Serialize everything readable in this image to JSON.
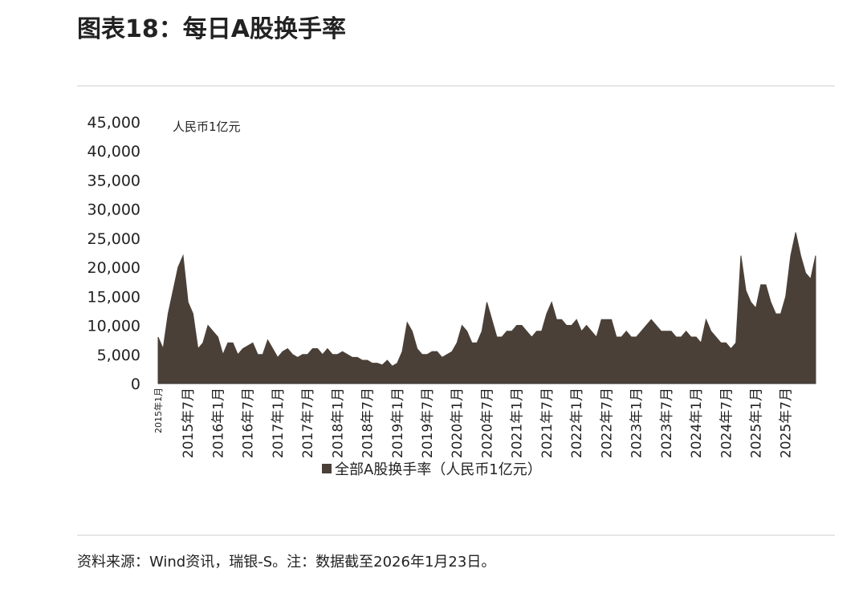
{
  "chart_data": {
    "type": "area",
    "title": "图表18：每日A股换手率",
    "unit_label": "人民币1亿元",
    "source": "资料来源：Wind资讯，瑞银-S。注：数据截至2026年1月23日。",
    "categories": [
      "2015年1月",
      null,
      null,
      null,
      null,
      null,
      "2015年7月",
      null,
      null,
      null,
      null,
      null,
      "2016年1月",
      null,
      null,
      null,
      null,
      null,
      "2016年7月",
      null,
      null,
      null,
      null,
      null,
      "2017年1月",
      null,
      null,
      null,
      null,
      null,
      "2017年7月",
      null,
      null,
      null,
      null,
      null,
      "2018年1月",
      null,
      null,
      null,
      null,
      null,
      "2018年7月",
      null,
      null,
      null,
      null,
      null,
      "2019年1月",
      null,
      null,
      null,
      null,
      null,
      "2019年7月",
      null,
      null,
      null,
      null,
      null,
      "2020年1月",
      null,
      null,
      null,
      null,
      null,
      "2020年7月",
      null,
      null,
      null,
      null,
      null,
      "2021年1月",
      null,
      null,
      null,
      null,
      null,
      "2021年7月",
      null,
      null,
      null,
      null,
      null,
      "2022年1月",
      null,
      null,
      null,
      null,
      null,
      "2022年7月",
      null,
      null,
      null,
      null,
      null,
      "2023年1月",
      null,
      null,
      null,
      null,
      null,
      "2023年7月",
      null,
      null,
      null,
      null,
      null,
      "2024年1月",
      null,
      null,
      null,
      null,
      null,
      "2024年7月",
      null,
      null,
      null,
      null,
      null,
      "2025年1月",
      null,
      null,
      null,
      null,
      null,
      "2025年7月",
      null,
      null,
      null,
      null,
      null,
      null
    ],
    "series": [
      {
        "name": "全部A股换手率（人民币1亿元）",
        "color": "#4a4038",
        "values": [
          8000,
          6000,
          12000,
          16000,
          20000,
          22000,
          14000,
          12000,
          6000,
          7000,
          10000,
          9000,
          8000,
          5000,
          7000,
          7000,
          5000,
          6000,
          6500,
          7000,
          5000,
          5000,
          7500,
          6000,
          4500,
          5500,
          6000,
          5000,
          4500,
          5000,
          5000,
          6000,
          6000,
          5000,
          6000,
          5000,
          5000,
          5500,
          5000,
          4500,
          4500,
          4000,
          4000,
          3500,
          3500,
          3200,
          4000,
          3000,
          3500,
          5500,
          10500,
          9000,
          6000,
          5000,
          5000,
          5500,
          5500,
          4500,
          5000,
          5500,
          7000,
          10000,
          9000,
          7000,
          7000,
          9000,
          14000,
          11000,
          8000,
          8000,
          9000,
          9000,
          10000,
          10000,
          9000,
          8000,
          9000,
          9000,
          12000,
          14000,
          11000,
          11000,
          10000,
          10000,
          11000,
          9000,
          10000,
          9000,
          8000,
          11000,
          11000,
          11000,
          8000,
          8000,
          9000,
          8000,
          8000,
          9000,
          10000,
          11000,
          10000,
          9000,
          9000,
          9000,
          8000,
          8000,
          9000,
          8000,
          8000,
          7000,
          11000,
          9000,
          8000,
          7000,
          7000,
          6000,
          7000,
          22000,
          16000,
          14000,
          13000,
          17000,
          17000,
          14000,
          12000,
          12000,
          15000,
          22000,
          26000,
          22000,
          19000,
          18000,
          22000
        ]
      }
    ],
    "ylim": [
      0,
      45000
    ],
    "yticks": [
      0,
      {
        "value": 5000,
        "label": "5,000"
      },
      {
        "value": 10000,
        "label": "10,000"
      },
      {
        "value": 15000,
        "label": "15,000"
      },
      {
        "value": 20000,
        "label": "20,000"
      },
      {
        "value": 25000,
        "label": "25,000"
      },
      {
        "value": 30000,
        "label": "30,000"
      },
      {
        "value": 35000,
        "label": "35,000"
      },
      {
        "value": 40000,
        "label": "40,000"
      },
      {
        "value": 45000,
        "label": "45,000"
      }
    ]
  }
}
